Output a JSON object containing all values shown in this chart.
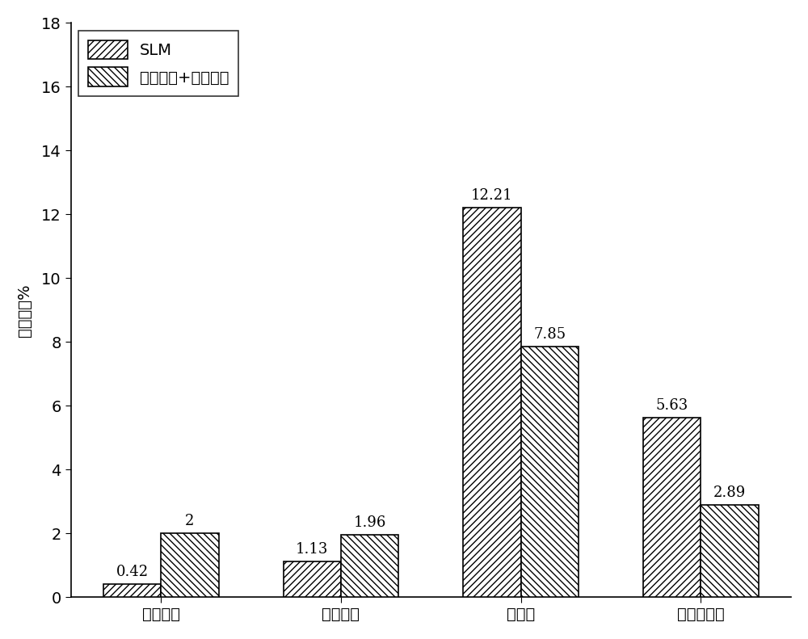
{
  "categories": [
    "抗拉强度",
    "屈服强度",
    "延伸率",
    "断面收缩率"
  ],
  "slm_values": [
    0.42,
    1.13,
    12.21,
    5.63
  ],
  "heat_values": [
    2.0,
    1.96,
    7.85,
    2.89
  ],
  "slm_labels": [
    "0.42",
    "1.13",
    "12.21",
    "5.63"
  ],
  "heat_labels": [
    "2",
    "1.96",
    "7.85",
    "2.89"
  ],
  "ylabel": "各向异性%",
  "ylim": [
    0,
    18
  ],
  "yticks": [
    0,
    2,
    4,
    6,
    8,
    10,
    12,
    14,
    16,
    18
  ],
  "legend_slm": "SLM",
  "legend_heat": "循环退火+固溢时效",
  "bar_width": 0.32,
  "slm_facecolor": "#ffffff",
  "heat_facecolor": "#ffffff",
  "slm_edgecolor": "#000000",
  "heat_edgecolor": "#000000",
  "background_color": "#ffffff",
  "label_fontsize": 14,
  "tick_fontsize": 14,
  "legend_fontsize": 14,
  "annotation_fontsize": 13
}
